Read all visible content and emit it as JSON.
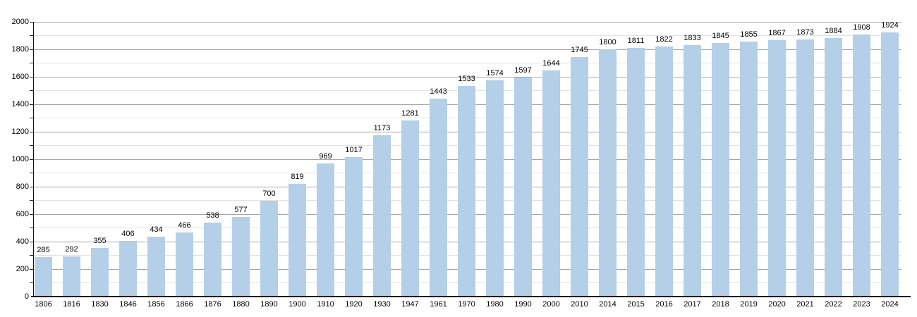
{
  "chart_data": {
    "type": "bar",
    "title": "",
    "xlabel": "",
    "ylabel": "",
    "categories": [
      "1806",
      "1816",
      "1830",
      "1846",
      "1856",
      "1866",
      "1876",
      "1880",
      "1890",
      "1900",
      "1910",
      "1920",
      "1930",
      "1947",
      "1961",
      "1970",
      "1980",
      "1990",
      "2000",
      "2010",
      "2014",
      "2015",
      "2016",
      "2017",
      "2018",
      "2019",
      "2020",
      "2021",
      "2022",
      "2023",
      "2024"
    ],
    "values": [
      285,
      292,
      355,
      406,
      434,
      466,
      538,
      577,
      700,
      819,
      969,
      1017,
      1173,
      1281,
      1443,
      1533,
      1574,
      1597,
      1644,
      1745,
      1800,
      1811,
      1822,
      1833,
      1845,
      1855,
      1867,
      1873,
      1884,
      1908,
      1924
    ],
    "ylim": [
      0,
      2000
    ],
    "ytick_major_step": 200,
    "ytick_minor_step": 100,
    "grid": "horizontal, minor every 100 (light), major every 200 (darker)",
    "legend": "none",
    "value_labels_position": "above bars"
  },
  "colors": {
    "background": "#ffffff",
    "bar_fill": "#b4cfe8",
    "grid_major": "#a6a6a6",
    "grid_minor": "#e2e2e2",
    "axis": "#111111",
    "tick": "#222222",
    "text": "#000000"
  }
}
